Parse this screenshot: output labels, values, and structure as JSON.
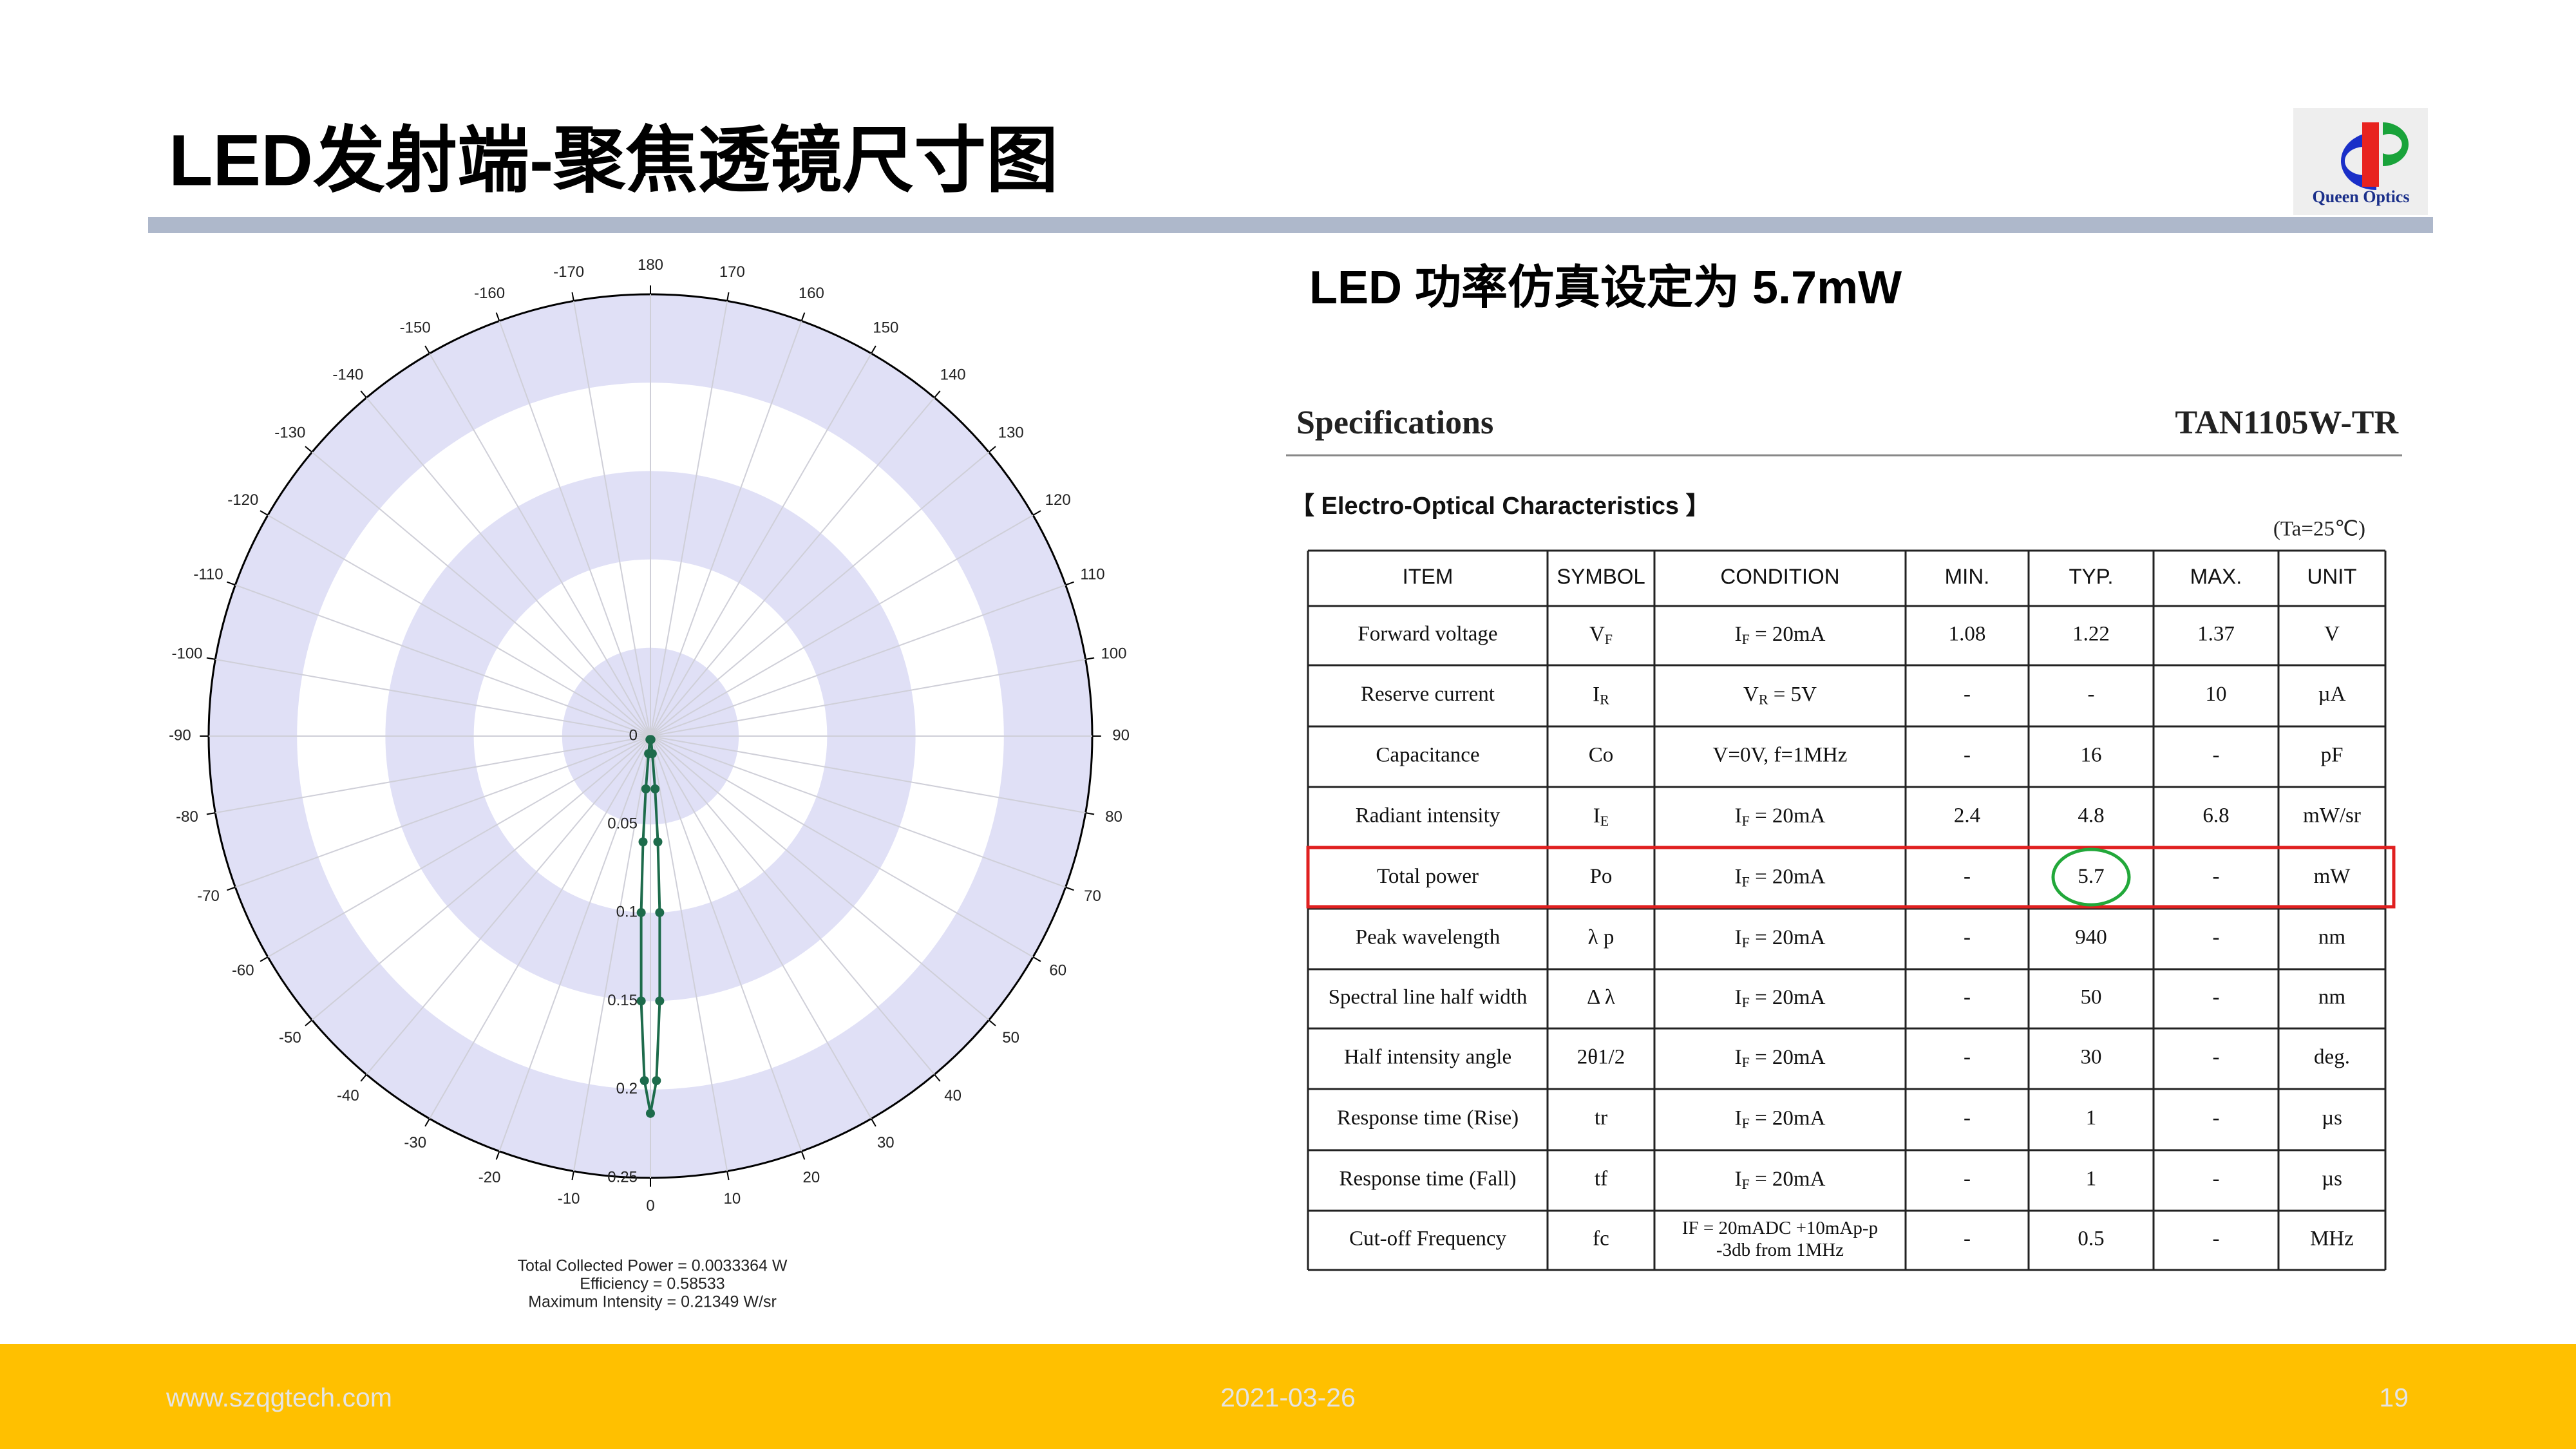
{
  "title": "LED发射端-聚焦透镜尺寸图",
  "logo": {
    "text": "Queen Optics"
  },
  "chart_data": {
    "type": "polar",
    "angle_ticks": [
      -170,
      -160,
      -150,
      -140,
      -130,
      -120,
      -110,
      -100,
      -90,
      -80,
      -70,
      -60,
      -50,
      -40,
      -30,
      -20,
      -10,
      0,
      10,
      20,
      30,
      40,
      50,
      60,
      70,
      80,
      90,
      100,
      110,
      120,
      130,
      140,
      150,
      160,
      170,
      180
    ],
    "rlim": [
      0,
      0.25
    ],
    "rticks": [
      0,
      0.05,
      0.1,
      0.15,
      0.2,
      0.25
    ],
    "band_color": "#e0e0f6",
    "series": [
      {
        "color": "#1d6b4b",
        "theta": [
          -8,
          -6,
          -5,
          -4,
          -3,
          -2,
          -1,
          0,
          1,
          2,
          3,
          4,
          5,
          6,
          8
        ],
        "values": [
          0.002,
          0.01,
          0.03,
          0.06,
          0.1,
          0.15,
          0.195,
          0.2135,
          0.195,
          0.15,
          0.1,
          0.06,
          0.03,
          0.01,
          0.002
        ]
      }
    ],
    "annotations": [
      "Total Collected Power = 0.0033364  W",
      "Efficiency = 0.58533",
      "Maximum Intensity = 0.21349  W/sr"
    ]
  },
  "subtitle": "LED 功率仿真设定为 5.7mW",
  "spec": {
    "heading": "Specifications",
    "model": "TAN1105W-TR",
    "section": "【 Electro-Optical Characteristics 】",
    "condition": "(Ta=25℃)",
    "header": [
      "ITEM",
      "SYMBOL",
      "CONDITION",
      "MIN.",
      "TYP.",
      "MAX.",
      "UNIT"
    ],
    "rows": [
      [
        "Forward voltage",
        {
          "text": "V",
          "sub": "F"
        },
        {
          "text": "I",
          "sub": "F",
          "rest": " = 20mA"
        },
        "1.08",
        "1.22",
        "1.37",
        "V"
      ],
      [
        "Reserve current",
        {
          "text": "I",
          "sub": "R"
        },
        {
          "text": "V",
          "sub": "R",
          "rest": " = 5V"
        },
        "-",
        "-",
        "10",
        "µA"
      ],
      [
        "Capacitance",
        "Co",
        "V=0V, f=1MHz",
        "-",
        "16",
        "-",
        "pF"
      ],
      [
        "Radiant intensity",
        {
          "text": "I",
          "sub": "E"
        },
        {
          "text": "I",
          "sub": "F",
          "rest": " = 20mA"
        },
        "2.4",
        "4.8",
        "6.8",
        "mW/sr"
      ],
      [
        "Total power",
        "Po",
        {
          "text": "I",
          "sub": "F",
          "rest": " = 20mA"
        },
        "-",
        "5.7",
        "-",
        "mW"
      ],
      [
        "Peak wavelength",
        "λ p",
        {
          "text": "I",
          "sub": "F",
          "rest": " = 20mA"
        },
        "-",
        "940",
        "-",
        "nm"
      ],
      [
        "Spectral line half width",
        "Δ λ",
        {
          "text": "I",
          "sub": "F",
          "rest": " = 20mA"
        },
        "-",
        "50",
        "-",
        "nm"
      ],
      [
        "Half intensity angle",
        "2θ1/2",
        {
          "text": "I",
          "sub": "F",
          "rest": " = 20mA"
        },
        "-",
        "30",
        "-",
        "deg."
      ],
      [
        "Response time (Rise)",
        "tr",
        {
          "text": "I",
          "sub": "F",
          "rest": " = 20mA"
        },
        "-",
        "1",
        "-",
        "µs"
      ],
      [
        "Response time (Fall)",
        "tf",
        {
          "text": "I",
          "sub": "F",
          "rest": " = 20mA"
        },
        "-",
        "1",
        "-",
        "µs"
      ],
      [
        "Cut-off Frequency",
        "fc",
        [
          "IF = 20mADC +10mAp-p",
          "-3db from 1MHz"
        ],
        "-",
        "0.5",
        "-",
        "MHz"
      ]
    ]
  },
  "footer": {
    "website": "www.szqgtech.com",
    "date": "2021-03-26",
    "page": "19"
  }
}
